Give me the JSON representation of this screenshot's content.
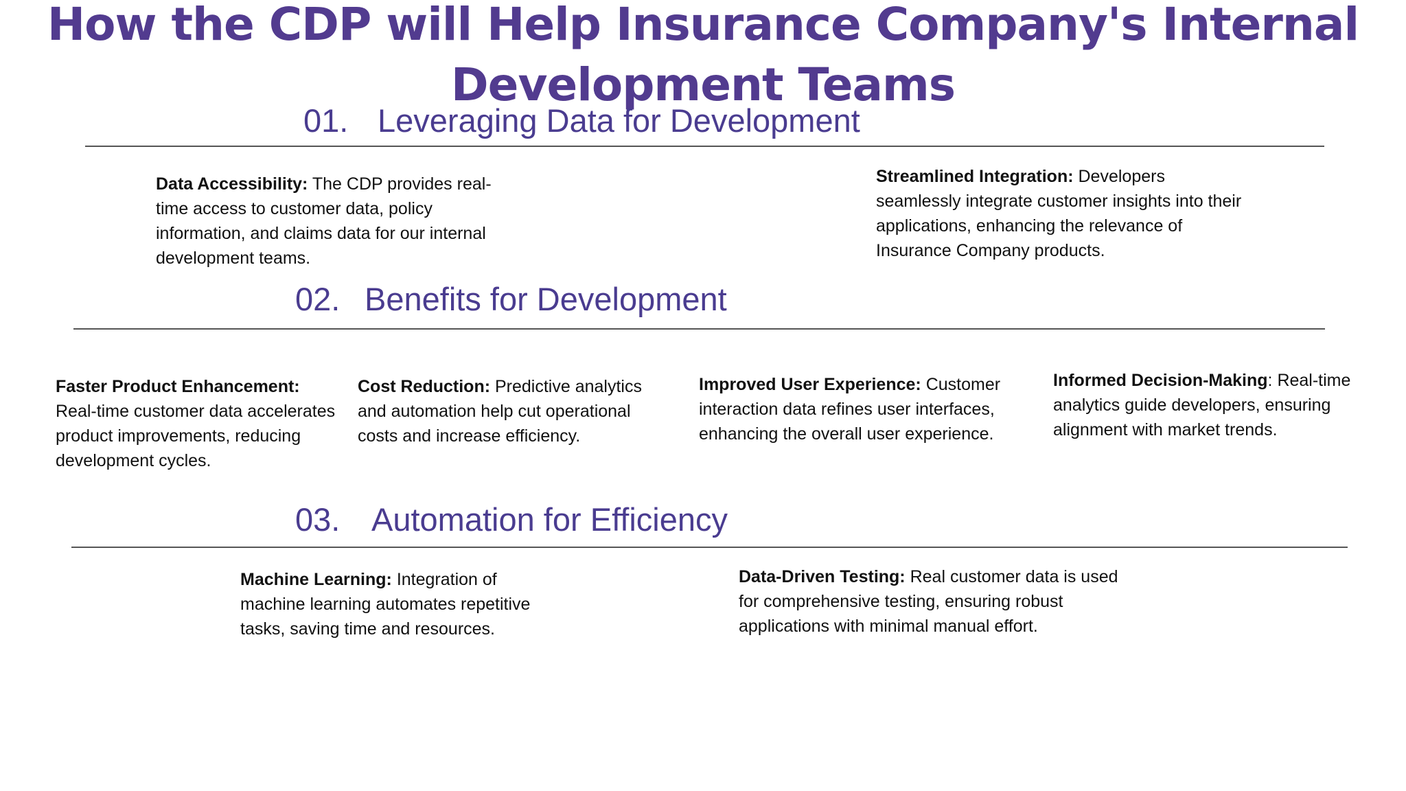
{
  "title": {
    "line1": "How the CDP will Help Insurance Company's Internal",
    "line2": "Development Teams"
  },
  "sections": [
    {
      "number": "01.",
      "heading": "Leveraging Data for Development",
      "items": [
        {
          "label": "Data Accessibility:",
          "text": " The CDP provides real-time access to customer data, policy information, and claims data for our internal development teams."
        },
        {
          "label": "Streamlined Integration:",
          "text": " Developers seamlessly integrate customer insights into their applications, enhancing the relevance of Insurance Company products."
        }
      ]
    },
    {
      "number": "02.",
      "heading": "Benefits for Development",
      "items": [
        {
          "label": "Faster Product Enhancement:",
          "text": " Real-time customer data accelerates product improvements, reducing development cycles."
        },
        {
          "label": "Cost Reduction:",
          "text": " Predictive analytics and automation help cut operational costs and increase efficiency."
        },
        {
          "label": "Improved User Experience:",
          "text": " Customer interaction data refines user interfaces, enhancing the overall user experience."
        },
        {
          "label": "Informed Decision-Making",
          "text": ": Real-time analytics guide developers, ensuring alignment with market trends."
        }
      ]
    },
    {
      "number": "03.",
      "heading": "Automation for Efficiency",
      "items": [
        {
          "label": "Machine Learning:",
          "text": " Integration of machine learning automates repetitive tasks, saving time and resources."
        },
        {
          "label": "Data-Driven Testing:",
          "text": " Real customer data is used for comprehensive testing, ensuring robust applications with minimal manual effort."
        }
      ]
    }
  ],
  "colors": {
    "title": "#523b8f",
    "heading": "#4a3c90",
    "body_text": "#111111",
    "rule": "#555555",
    "background": "#ffffff"
  }
}
